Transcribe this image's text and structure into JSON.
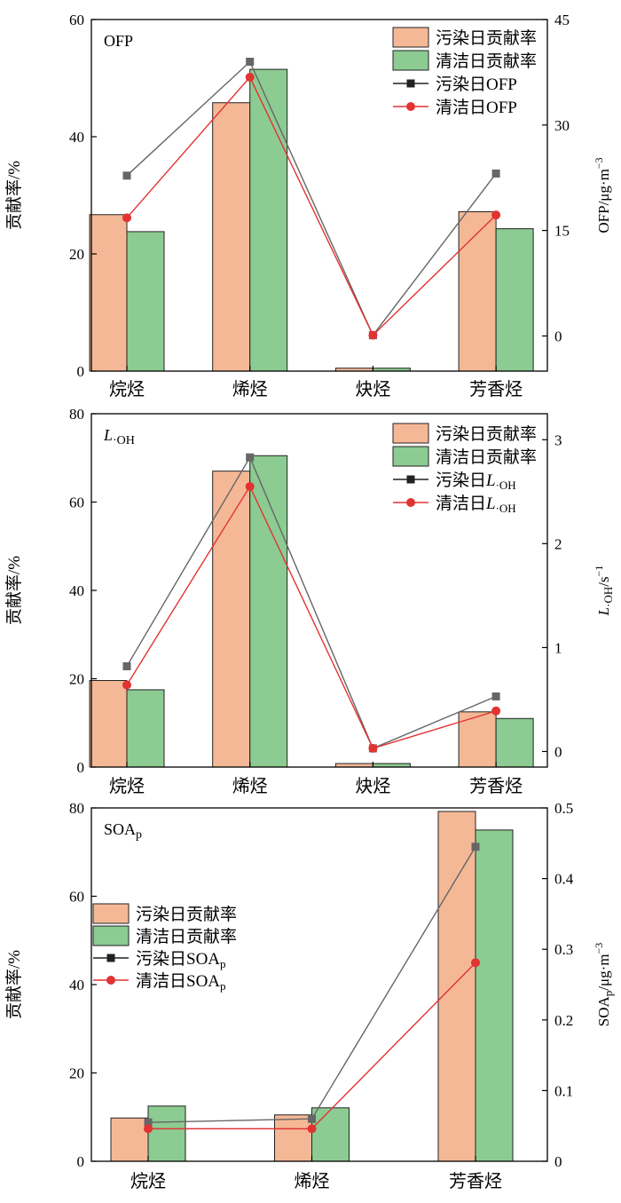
{
  "colors": {
    "polluted_bar": "#F5B896",
    "clean_bar": "#8CCB92",
    "polluted_line": "#666666",
    "clean_line": "#E23333",
    "bar_stroke": "#222222"
  },
  "chart_data": [
    {
      "type": "bar",
      "panel_label": "OFP",
      "categories": [
        "烷烃",
        "烯烃",
        "炔烃",
        "芳香烃"
      ],
      "ylabel": "贡献率/%",
      "y2label": "OFP/μg·m⁻³",
      "ylim": [
        0,
        60
      ],
      "yticks": [
        0,
        20,
        40,
        60
      ],
      "y2lim": [
        -5,
        45
      ],
      "y2ticks": [
        0,
        15,
        30,
        45
      ],
      "legend_position": "top-right",
      "bar_series": [
        {
          "name": "污染日贡献率",
          "values": [
            26.7,
            45.8,
            0.5,
            27.2
          ]
        },
        {
          "name": "清洁日贡献率",
          "values": [
            23.8,
            51.5,
            0.5,
            24.3
          ]
        }
      ],
      "line_series": [
        {
          "name": "污染日OFP",
          "values": [
            22.8,
            39.0,
            0.1,
            23.1
          ]
        },
        {
          "name": "清洁日OFP",
          "values": [
            16.8,
            36.8,
            0.1,
            17.2
          ]
        }
      ]
    },
    {
      "type": "bar",
      "panel_label": "L·OH",
      "categories": [
        "烷烃",
        "烯烃",
        "炔烃",
        "芳香烃"
      ],
      "ylabel": "贡献率/%",
      "y2label": "L·OH/s⁻¹",
      "ylim": [
        0,
        80
      ],
      "yticks": [
        0,
        20,
        40,
        60,
        80
      ],
      "y2lim": [
        -0.15,
        3.25
      ],
      "y2ticks": [
        0,
        1,
        2,
        3
      ],
      "legend_position": "top-right",
      "bar_series": [
        {
          "name": "污染日贡献率",
          "values": [
            19.6,
            67.0,
            0.8,
            12.5
          ]
        },
        {
          "name": "清洁日贡献率",
          "values": [
            17.5,
            70.5,
            0.8,
            11.0
          ]
        }
      ],
      "line_series": [
        {
          "name": "污染日L·OH",
          "values": [
            0.82,
            2.83,
            0.03,
            0.53
          ]
        },
        {
          "name": "清洁日L·OH",
          "values": [
            0.64,
            2.55,
            0.03,
            0.39
          ]
        }
      ]
    },
    {
      "type": "bar",
      "panel_label": "SOAp",
      "categories": [
        "烷烃",
        "烯烃",
        "芳香烃"
      ],
      "ylabel": "贡献率/%",
      "y2label": "SOAp/μg·m⁻³",
      "ylim": [
        0,
        80
      ],
      "yticks": [
        0,
        20,
        40,
        60,
        80
      ],
      "y2lim": [
        0,
        0.5
      ],
      "y2ticks": [
        0,
        0.1,
        0.2,
        0.3,
        0.4,
        0.5
      ],
      "legend_position": "middle-left",
      "bar_series": [
        {
          "name": "污染日贡献率",
          "values": [
            9.8,
            10.5,
            79.2
          ]
        },
        {
          "name": "清洁日贡献率",
          "values": [
            12.5,
            12.1,
            75.0
          ]
        }
      ],
      "line_series": [
        {
          "name": "污染日SOAp",
          "values": [
            0.055,
            0.06,
            0.445
          ]
        },
        {
          "name": "清洁日SOAp",
          "values": [
            0.046,
            0.046,
            0.281
          ]
        }
      ]
    }
  ]
}
